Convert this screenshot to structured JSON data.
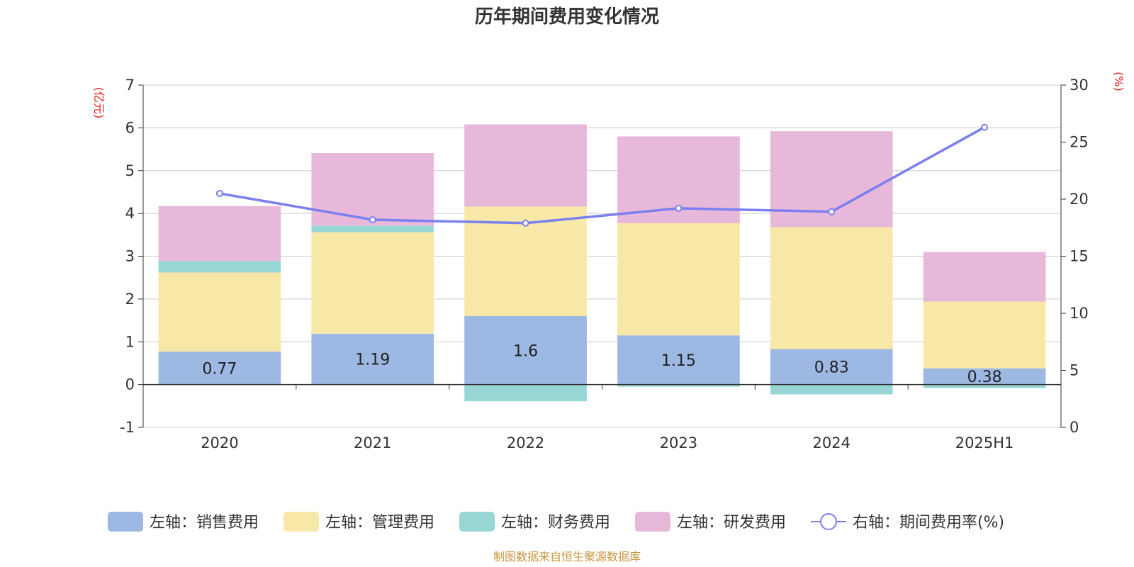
{
  "chart_data": {
    "type": "bar",
    "title": "历年期间费用变化情况",
    "categories": [
      "2020",
      "2021",
      "2022",
      "2023",
      "2024",
      "2025H1"
    ],
    "left_axis": {
      "unit": "(亿元)",
      "min": -1,
      "max": 7,
      "ticks": [
        "-1",
        "0",
        "1",
        "2",
        "3",
        "4",
        "5",
        "6",
        "7"
      ]
    },
    "right_axis": {
      "unit": "(%)",
      "min": 0,
      "max": 30,
      "ticks": [
        "0",
        "5",
        "10",
        "15",
        "20",
        "25",
        "30"
      ]
    },
    "grid": true,
    "legend_position": "bottom",
    "series": [
      {
        "name": "左轴：销售费用",
        "type": "bar",
        "axis": "left",
        "color": "#9db8e2",
        "values": [
          0.77,
          1.19,
          1.6,
          1.15,
          0.83,
          0.38
        ],
        "labels": [
          "0.77",
          "1.19",
          "1.6",
          "1.15",
          "0.83",
          "0.38"
        ]
      },
      {
        "name": "左轴：管理费用",
        "type": "bar",
        "axis": "left",
        "color": "#f8e8a8",
        "values": [
          1.85,
          2.37,
          2.56,
          2.62,
          2.85,
          1.56
        ]
      },
      {
        "name": "左轴：财务费用",
        "type": "bar",
        "axis": "left",
        "color": "#98d6d6",
        "values": [
          0.27,
          0.15,
          -0.39,
          -0.05,
          -0.23,
          -0.08
        ]
      },
      {
        "name": "左轴：研发费用",
        "type": "bar",
        "axis": "left",
        "color": "#e8b8da",
        "values": [
          1.28,
          1.7,
          1.92,
          2.03,
          2.24,
          1.16
        ]
      },
      {
        "name": "右轴：期间费用率(%)",
        "type": "line",
        "axis": "right",
        "color": "#7b7ff0",
        "values": [
          20.5,
          18.2,
          17.9,
          19.2,
          18.9,
          26.3
        ]
      }
    ],
    "source": "制图数据来自恒生聚源数据库"
  }
}
